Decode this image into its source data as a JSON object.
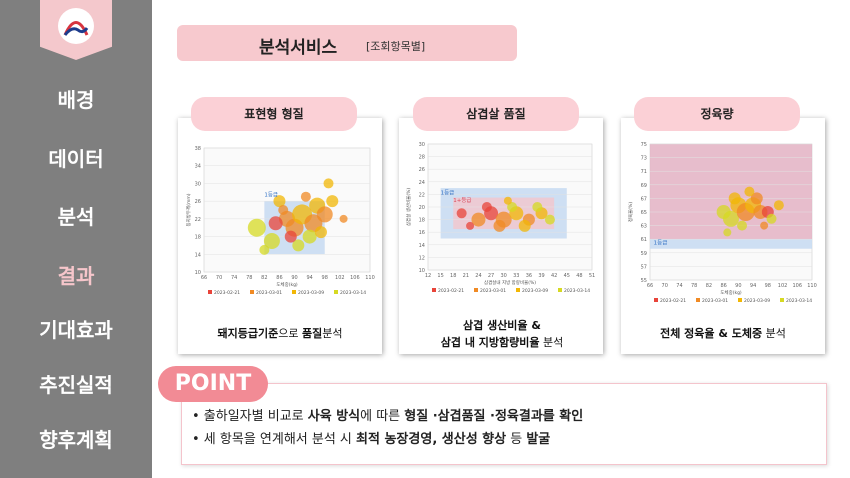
{
  "sidebar": {
    "items": [
      "배경",
      "데이터",
      "분석",
      "결과",
      "기대효과",
      "추진실적",
      "향후계획"
    ],
    "active_index": 3
  },
  "header": {
    "title": "분석서비스",
    "subtitle": "[조회항목별]"
  },
  "panels": [
    {
      "label": "표현형 형질",
      "caption_parts": [
        {
          "text": "돼지등급기준",
          "bold": true
        },
        {
          "text": "으로 ",
          "bold": false
        },
        {
          "text": "품질",
          "bold": true
        },
        {
          "text": "분석",
          "bold": false
        }
      ]
    },
    {
      "label": "삼겹살 품질",
      "caption_line1": "삼겹 생산비율 &",
      "caption_line2_bold": "삼겹 내 지방함량비율",
      "caption_line2_rest": " 분석"
    },
    {
      "label": "정육량",
      "caption_parts": [
        {
          "text": "전체 정육율 & 도체중",
          "bold": true
        },
        {
          "text": " 분석",
          "bold": false
        }
      ]
    }
  ],
  "chart_data": [
    {
      "type": "scatter",
      "xlabel": "도체중(kg)",
      "ylabel": "등지방두께(mm)",
      "xticks": [
        66,
        70,
        74,
        78,
        82,
        86,
        90,
        94,
        98,
        102,
        106,
        110
      ],
      "yticks": [
        10,
        14,
        18,
        22,
        26,
        30,
        34,
        38
      ],
      "xlim": [
        66,
        110
      ],
      "ylim": [
        10,
        38
      ],
      "grade_label": "1등급",
      "legend": [
        "2023-02-21",
        "2023-03-01",
        "2023-03-09",
        "2023-03-14"
      ],
      "series_colors": [
        "#e8443a",
        "#f08a24",
        "#f2b705",
        "#d6d923"
      ],
      "points": [
        [
          80,
          20,
          9,
          3
        ],
        [
          84,
          17,
          8,
          3
        ],
        [
          88,
          22,
          8,
          1
        ],
        [
          90,
          20,
          9,
          1
        ],
        [
          92,
          23,
          10,
          2
        ],
        [
          95,
          21,
          9,
          1
        ],
        [
          96,
          25,
          8,
          2
        ],
        [
          94,
          18,
          7,
          3
        ],
        [
          86,
          26,
          6,
          2
        ],
        [
          98,
          23,
          8,
          1
        ],
        [
          100,
          26,
          6,
          2
        ],
        [
          91,
          16,
          6,
          3
        ],
        [
          85,
          21,
          7,
          0
        ],
        [
          89,
          18,
          6,
          0
        ],
        [
          93,
          27,
          5,
          1
        ],
        [
          97,
          19,
          6,
          2
        ],
        [
          82,
          15,
          5,
          3
        ],
        [
          87,
          24,
          5,
          1
        ],
        [
          99,
          30,
          5,
          2
        ],
        [
          103,
          22,
          4,
          1
        ]
      ]
    },
    {
      "type": "scatter",
      "xlabel": "삼겹살내 지방 함량비율(%)",
      "ylabel": "삼겹살 생산비율(%)",
      "xticks": [
        12,
        15,
        18,
        21,
        24,
        27,
        30,
        33,
        36,
        39,
        42,
        45,
        48,
        51
      ],
      "yticks": [
        10,
        12,
        14,
        16,
        18,
        20,
        22,
        24,
        26,
        28,
        30
      ],
      "xlim": [
        12,
        51
      ],
      "ylim": [
        10,
        30
      ],
      "grade_labels": [
        "1등급",
        "1+등급"
      ],
      "legend": [
        "2023-02-21",
        "2023-03-01",
        "2023-03-09",
        "2023-03-14"
      ],
      "series_colors": [
        "#e8443a",
        "#f08a24",
        "#f2b705",
        "#d6d923"
      ],
      "points": [
        [
          20,
          19,
          5,
          0
        ],
        [
          24,
          18,
          7,
          1
        ],
        [
          27,
          19,
          7,
          0
        ],
        [
          30,
          18,
          8,
          1
        ],
        [
          33,
          19,
          7,
          2
        ],
        [
          36,
          18,
          6,
          1
        ],
        [
          39,
          19,
          6,
          2
        ],
        [
          26,
          20,
          5,
          0
        ],
        [
          29,
          17,
          6,
          1
        ],
        [
          32,
          20,
          5,
          3
        ],
        [
          35,
          17,
          6,
          2
        ],
        [
          38,
          20,
          5,
          3
        ],
        [
          22,
          17,
          4,
          0
        ],
        [
          41,
          18,
          5,
          3
        ],
        [
          31,
          21,
          4,
          2
        ]
      ]
    },
    {
      "type": "scatter",
      "xlabel": "도체중(kg)",
      "ylabel": "정육율(%)",
      "xticks": [
        66,
        70,
        74,
        78,
        82,
        86,
        90,
        94,
        98,
        102,
        106,
        110
      ],
      "yticks": [
        55,
        57,
        59,
        61,
        63,
        65,
        67,
        69,
        71,
        73,
        75
      ],
      "xlim": [
        66,
        110
      ],
      "ylim": [
        55,
        75
      ],
      "grade_label": "1등급",
      "legend": [
        "2023-02-21",
        "2023-03-01",
        "2023-03-09",
        "2023-03-14"
      ],
      "series_colors": [
        "#e8443a",
        "#f08a24",
        "#f2b705",
        "#d6d923"
      ],
      "points": [
        [
          86,
          65,
          7,
          3
        ],
        [
          88,
          64,
          8,
          3
        ],
        [
          90,
          66,
          8,
          2
        ],
        [
          92,
          65,
          9,
          1
        ],
        [
          94,
          66,
          8,
          2
        ],
        [
          96,
          65,
          7,
          1
        ],
        [
          98,
          65,
          6,
          0
        ],
        [
          89,
          67,
          6,
          2
        ],
        [
          91,
          63,
          5,
          3
        ],
        [
          95,
          67,
          6,
          1
        ],
        [
          99,
          64,
          5,
          3
        ],
        [
          87,
          62,
          4,
          3
        ],
        [
          93,
          68,
          5,
          2
        ],
        [
          97,
          63,
          4,
          1
        ],
        [
          101,
          66,
          5,
          2
        ]
      ]
    }
  ],
  "point_section": {
    "badge": "POINT",
    "bullet1_parts": [
      {
        "text": "•  출하일자별 비교로 ",
        "bold": false
      },
      {
        "text": "사육 방식",
        "bold": true
      },
      {
        "text": "에 따른 ",
        "bold": false
      },
      {
        "text": "형질 ·삼겹품질 ·정육결과를 확인",
        "bold": true
      }
    ],
    "bullet2_parts": [
      {
        "text": "•  세 항목을 연계해서 분석 시 ",
        "bold": false
      },
      {
        "text": "최적 농장경영, 생산성 향상",
        "bold": true
      },
      {
        "text": " 등 ",
        "bold": false
      },
      {
        "text": "발굴",
        "bold": true
      }
    ]
  }
}
